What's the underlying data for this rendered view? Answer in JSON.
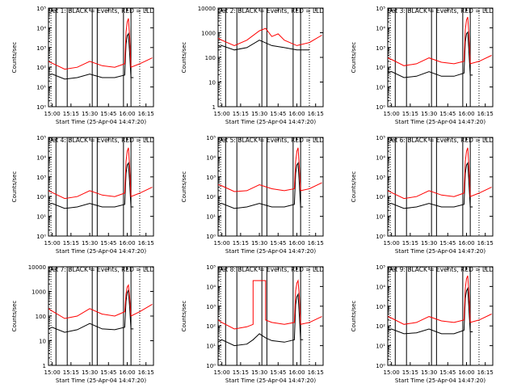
{
  "figure": {
    "xlabel": "Start Time (25-Apr-04 14:47:20)",
    "ylabel": "Counts/sec",
    "x_tick_labels": [
      "15:00",
      "15:15",
      "15:30",
      "15:45",
      "16:00",
      "16:15"
    ],
    "colors": {
      "events": "#000000",
      "lld": "#ff0000",
      "background": "#ffffff"
    }
  },
  "chart_data": [
    {
      "type": "line",
      "title": "Det 1: BLACK = Events, RED = LLD",
      "yscale": "log",
      "ylim_exp": [
        0,
        5
      ],
      "ytick_labels": [
        "10⁰",
        "10¹",
        "10²",
        "10³",
        "10⁴",
        "10⁵"
      ],
      "series": [
        {
          "name": "Events",
          "x": [
            "14:57",
            "15:00",
            "15:10",
            "15:20",
            "15:30",
            "15:40",
            "15:50",
            "15:58",
            "15:59",
            "16:00",
            "16:01",
            "16:02",
            "16:03",
            "16:05"
          ],
          "y": [
            40,
            45,
            25,
            30,
            45,
            30,
            30,
            40,
            1500,
            4000,
            5000,
            400,
            30,
            30
          ]
        },
        {
          "name": "LLD",
          "x": [
            "14:57",
            "15:00",
            "15:10",
            "15:20",
            "15:30",
            "15:40",
            "15:50",
            "15:58",
            "15:59",
            "16:00",
            "16:01",
            "16:02",
            "16:03",
            "16:10",
            "16:20"
          ],
          "y": [
            200,
            160,
            80,
            100,
            200,
            120,
            100,
            150,
            6000,
            20000,
            30000,
            3000,
            100,
            150,
            300
          ]
        }
      ]
    },
    {
      "type": "line",
      "title": "Det 2: BLACK = Events, RED = LLD",
      "yscale": "log",
      "ylim_exp": [
        0,
        4
      ],
      "ytick_labels": [
        "1",
        "10",
        "100",
        "1000",
        "10000"
      ],
      "series": [
        {
          "name": "Events",
          "x": [
            "14:57",
            "15:00",
            "15:10",
            "15:20",
            "15:30",
            "15:40",
            "15:50",
            "16:00",
            "16:10"
          ],
          "y": [
            250,
            300,
            200,
            250,
            500,
            300,
            250,
            200,
            200
          ]
        },
        {
          "name": "LLD",
          "x": [
            "14:57",
            "15:00",
            "15:10",
            "15:20",
            "15:30",
            "15:35",
            "15:40",
            "15:45",
            "15:50",
            "16:00",
            "16:10",
            "16:20"
          ],
          "y": [
            600,
            500,
            300,
            500,
            1200,
            1500,
            700,
            900,
            500,
            300,
            400,
            800
          ]
        }
      ]
    },
    {
      "type": "line",
      "title": "Det 3: BLACK = Events, RED = LLD",
      "yscale": "log",
      "ylim_exp": [
        0,
        5
      ],
      "ytick_labels": [
        "10⁰",
        "10¹",
        "10²",
        "10³",
        "10⁴",
        "10⁵"
      ],
      "series": [
        {
          "name": "Events",
          "x": [
            "14:57",
            "15:00",
            "15:10",
            "15:20",
            "15:30",
            "15:40",
            "15:50",
            "15:58",
            "15:59",
            "16:00",
            "16:01",
            "16:02",
            "16:03",
            "16:05"
          ],
          "y": [
            50,
            60,
            30,
            35,
            60,
            35,
            35,
            50,
            2000,
            5000,
            6000,
            500,
            40,
            40
          ]
        },
        {
          "name": "LLD",
          "x": [
            "14:57",
            "15:00",
            "15:10",
            "15:20",
            "15:30",
            "15:40",
            "15:50",
            "15:58",
            "15:59",
            "16:00",
            "16:01",
            "16:02",
            "16:03",
            "16:10",
            "16:20"
          ],
          "y": [
            300,
            250,
            120,
            150,
            300,
            180,
            150,
            200,
            8000,
            25000,
            35000,
            4000,
            150,
            200,
            400
          ]
        }
      ]
    },
    {
      "type": "line",
      "title": "Det 4: BLACK = Events, RED = LLD",
      "yscale": "log",
      "ylim_exp": [
        0,
        5
      ],
      "ytick_labels": [
        "10⁰",
        "10¹",
        "10²",
        "10³",
        "10⁴",
        "10⁵"
      ],
      "series": [
        {
          "name": "Events",
          "x": [
            "14:57",
            "15:00",
            "15:10",
            "15:20",
            "15:30",
            "15:40",
            "15:50",
            "15:58",
            "15:59",
            "16:00",
            "16:01",
            "16:02",
            "16:03",
            "16:05"
          ],
          "y": [
            40,
            45,
            25,
            30,
            45,
            30,
            30,
            40,
            1500,
            4000,
            5000,
            400,
            30,
            30
          ]
        },
        {
          "name": "LLD",
          "x": [
            "14:57",
            "15:00",
            "15:10",
            "15:20",
            "15:30",
            "15:40",
            "15:50",
            "15:58",
            "15:59",
            "16:00",
            "16:01",
            "16:02",
            "16:03",
            "16:10",
            "16:20"
          ],
          "y": [
            200,
            160,
            80,
            100,
            200,
            120,
            100,
            150,
            6000,
            20000,
            30000,
            3000,
            100,
            150,
            300
          ]
        }
      ]
    },
    {
      "type": "line",
      "title": "Det 5: BLACK = Events, RED = LLD",
      "yscale": "log",
      "ylim_exp": [
        0,
        5
      ],
      "ytick_labels": [
        "10⁰",
        "10¹",
        "10²",
        "10³",
        "10⁴",
        "10⁵"
      ],
      "series": [
        {
          "name": "Events",
          "x": [
            "14:57",
            "15:00",
            "15:10",
            "15:20",
            "15:30",
            "15:40",
            "15:50",
            "15:58",
            "15:59",
            "16:00",
            "16:01",
            "16:02",
            "16:03",
            "16:05"
          ],
          "y": [
            40,
            45,
            25,
            30,
            45,
            30,
            30,
            40,
            1500,
            4000,
            5000,
            400,
            30,
            30
          ]
        },
        {
          "name": "LLD",
          "x": [
            "14:57",
            "15:00",
            "15:10",
            "15:20",
            "15:30",
            "15:40",
            "15:50",
            "15:58",
            "15:59",
            "16:00",
            "16:01",
            "16:02",
            "16:03",
            "16:10",
            "16:20"
          ],
          "y": [
            400,
            350,
            180,
            200,
            400,
            250,
            200,
            250,
            6000,
            20000,
            30000,
            3000,
            200,
            250,
            500
          ]
        }
      ]
    },
    {
      "type": "line",
      "title": "Det 6: BLACK = Events, RED = LLD",
      "yscale": "log",
      "ylim_exp": [
        0,
        5
      ],
      "ytick_labels": [
        "10⁰",
        "10¹",
        "10²",
        "10³",
        "10⁴",
        "10⁵"
      ],
      "series": [
        {
          "name": "Events",
          "x": [
            "14:57",
            "15:00",
            "15:10",
            "15:20",
            "15:30",
            "15:40",
            "15:50",
            "15:58",
            "15:59",
            "16:00",
            "16:01",
            "16:02",
            "16:03",
            "16:05"
          ],
          "y": [
            40,
            45,
            25,
            30,
            45,
            30,
            30,
            40,
            1500,
            4000,
            5000,
            400,
            30,
            30
          ]
        },
        {
          "name": "LLD",
          "x": [
            "14:57",
            "15:00",
            "15:10",
            "15:20",
            "15:30",
            "15:40",
            "15:50",
            "15:58",
            "15:59",
            "16:00",
            "16:01",
            "16:02",
            "16:03",
            "16:10",
            "16:20"
          ],
          "y": [
            200,
            160,
            80,
            100,
            200,
            120,
            100,
            150,
            6000,
            20000,
            30000,
            3000,
            100,
            150,
            300
          ]
        }
      ]
    },
    {
      "type": "line",
      "title": "Det 7: BLACK = Events, RED = LLD",
      "yscale": "log",
      "ylim_exp": [
        0,
        4
      ],
      "ytick_labels": [
        "1",
        "10",
        "100",
        "1000",
        "10000"
      ],
      "series": [
        {
          "name": "Events",
          "x": [
            "14:57",
            "15:00",
            "15:10",
            "15:20",
            "15:30",
            "15:40",
            "15:50",
            "15:58",
            "15:59",
            "16:00",
            "16:01",
            "16:02",
            "16:03",
            "16:05"
          ],
          "y": [
            30,
            35,
            22,
            28,
            50,
            30,
            28,
            35,
            400,
            900,
            1100,
            200,
            30,
            30
          ]
        },
        {
          "name": "LLD",
          "x": [
            "14:57",
            "15:00",
            "15:10",
            "15:20",
            "15:30",
            "15:40",
            "15:50",
            "15:58",
            "15:59",
            "16:00",
            "16:01",
            "16:02",
            "16:03",
            "16:10",
            "16:20"
          ],
          "y": [
            200,
            160,
            80,
            100,
            200,
            120,
            100,
            150,
            800,
            1500,
            1800,
            500,
            100,
            150,
            300
          ]
        }
      ]
    },
    {
      "type": "line",
      "title": "Det 8: BLACK = Events, RED = LLD",
      "yscale": "log",
      "ylim_exp": [
        0,
        5
      ],
      "ytick_labels": [
        "10⁰",
        "10¹",
        "10²",
        "10³",
        "10⁴",
        "10⁵"
      ],
      "series": [
        {
          "name": "Events",
          "x": [
            "14:57",
            "15:00",
            "15:10",
            "15:20",
            "15:25",
            "15:30",
            "15:35",
            "15:40",
            "15:50",
            "15:58",
            "15:59",
            "16:00",
            "16:01",
            "16:02",
            "16:03",
            "16:05"
          ],
          "y": [
            15,
            20,
            10,
            12,
            20,
            40,
            25,
            18,
            15,
            20,
            1200,
            3000,
            4000,
            300,
            20,
            20
          ]
        },
        {
          "name": "LLD",
          "x": [
            "14:57",
            "15:00",
            "15:10",
            "15:20",
            "15:25",
            "15:25",
            "15:35",
            "15:35",
            "15:40",
            "15:50",
            "15:58",
            "15:59",
            "16:00",
            "16:01",
            "16:02",
            "16:03",
            "16:10",
            "16:20"
          ],
          "y": [
            200,
            150,
            70,
            90,
            120,
            20000,
            20000,
            200,
            150,
            120,
            150,
            6000,
            15000,
            20000,
            3000,
            120,
            150,
            300
          ]
        }
      ]
    },
    {
      "type": "line",
      "title": "Det 9: BLACK = Events, RED = LLD",
      "yscale": "log",
      "ylim_exp": [
        0,
        5
      ],
      "ytick_labels": [
        "10⁰",
        "10¹",
        "10²",
        "10³",
        "10⁴",
        "10⁵"
      ],
      "series": [
        {
          "name": "Events",
          "x": [
            "14:57",
            "15:00",
            "15:10",
            "15:20",
            "15:30",
            "15:40",
            "15:50",
            "15:58",
            "15:59",
            "16:00",
            "16:01",
            "16:02",
            "16:03",
            "16:05"
          ],
          "y": [
            60,
            70,
            40,
            45,
            70,
            40,
            40,
            60,
            2500,
            6000,
            8000,
            600,
            50,
            50
          ]
        },
        {
          "name": "LLD",
          "x": [
            "14:57",
            "15:00",
            "15:10",
            "15:20",
            "15:30",
            "15:40",
            "15:50",
            "15:58",
            "15:59",
            "16:00",
            "16:01",
            "16:02",
            "16:03",
            "16:10",
            "16:20"
          ],
          "y": [
            300,
            250,
            120,
            150,
            300,
            180,
            150,
            200,
            8000,
            25000,
            35000,
            4000,
            150,
            200,
            400
          ]
        }
      ]
    }
  ]
}
